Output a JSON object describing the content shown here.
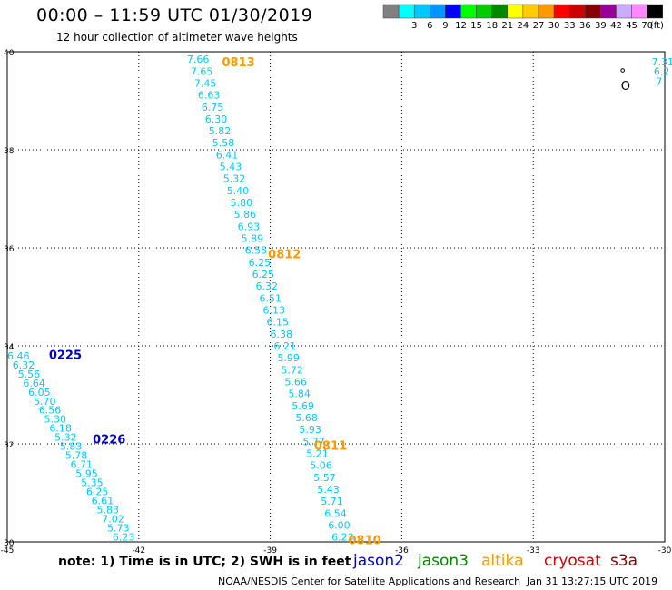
{
  "header": {
    "title": "00:00 – 11:59 UTC 01/30/2019",
    "subtitle": "12 hour collection of altimeter wave heights"
  },
  "colorbar": {
    "unit": "(ft)",
    "bins": [
      {
        "label": "",
        "color": "#808080"
      },
      {
        "label": "3",
        "color": "#00ffff"
      },
      {
        "label": "6",
        "color": "#00c8ff"
      },
      {
        "label": "9",
        "color": "#0096ff"
      },
      {
        "label": "12",
        "color": "#0000ff"
      },
      {
        "label": "15",
        "color": "#00ff00"
      },
      {
        "label": "18",
        "color": "#00cc00"
      },
      {
        "label": "21",
        "color": "#008800"
      },
      {
        "label": "24",
        "color": "#ffff00"
      },
      {
        "label": "27",
        "color": "#ffcc00"
      },
      {
        "label": "30",
        "color": "#ff9900"
      },
      {
        "label": "33",
        "color": "#ff0000"
      },
      {
        "label": "36",
        "color": "#cc0000"
      },
      {
        "label": "39",
        "color": "#880000"
      },
      {
        "label": "42",
        "color": "#990099"
      },
      {
        "label": "45",
        "color": "#ccaaff"
      },
      {
        "label": "70",
        "color": "#ff88ff"
      },
      {
        "label": "",
        "color": "#000000"
      }
    ]
  },
  "footer": {
    "note": "note: 1) Time is in UTC; 2) SWH is in feet",
    "satellites": [
      {
        "name": "jason2",
        "color": "#0000cc"
      },
      {
        "name": "jason3",
        "color": "#008800"
      },
      {
        "name": "altika",
        "color": "#ff9900"
      },
      {
        "name": "cryosat",
        "color": "#cc0000"
      },
      {
        "name": "s3a",
        "color": "#880000"
      }
    ],
    "credit": "NOAA/NESDIS Center for Satellite Applications and Research",
    "timestamp": "Jan 31 13:27:15 UTC 2019"
  },
  "chart_data": {
    "type": "scatter",
    "xlim": [
      -45,
      -30
    ],
    "ylim": [
      30,
      40
    ],
    "x_ticks": [
      -45,
      -42,
      -39,
      -36,
      -33,
      -30
    ],
    "x_tick_labels": [
      "-45",
      "-42",
      "-39",
      "-36",
      "-33",
      "-30"
    ],
    "y_ticks": [
      30,
      32,
      34,
      36,
      38,
      40
    ],
    "y_tick_labels": [
      "30",
      "32",
      "34",
      "36",
      "38",
      "40"
    ],
    "grid": true,
    "value_color": "#00c8ff",
    "tracks": [
      {
        "satellite": "altika",
        "start": [
          -40.9,
          39.85
        ],
        "end": [
          -37.6,
          30.1
        ],
        "values": [
          "7.66",
          "7.65",
          "7.45",
          "6.63",
          "6.75",
          "6.30",
          "5.82",
          "5.58",
          "6.41",
          "5.43",
          "5.32",
          "5.40",
          "5.80",
          "5.86",
          "6.93",
          "5.89",
          "6.55",
          "6.25",
          "6.25",
          "6.32",
          "6.51",
          "6.13",
          "6.15",
          "6.38",
          "6.21",
          "5.99",
          "5.72",
          "5.66",
          "5.84",
          "5.69",
          "5.68",
          "5.93",
          "5.77",
          "5.21",
          "5.06",
          "5.57",
          "5.43",
          "5.71",
          "6.54",
          "6.00",
          "6.23"
        ],
        "time_labels": [
          {
            "text": "0813",
            "lon": -40.1,
            "lat": 39.8,
            "color": "#ff9900"
          },
          {
            "text": "0812",
            "lon": -39.05,
            "lat": 35.88,
            "color": "#ff9900"
          },
          {
            "text": "0811",
            "lon": -38.0,
            "lat": 31.97,
            "color": "#ff9900"
          },
          {
            "text": "0810",
            "lon": -37.22,
            "lat": 30.05,
            "color": "#ff9900"
          }
        ]
      },
      {
        "satellite": "jason2",
        "start": [
          -45.0,
          33.8
        ],
        "end": [
          -42.6,
          30.1
        ],
        "values": [
          "6.46",
          "6.32",
          "5.56",
          "6.64",
          "6.05",
          "5.70",
          "6.56",
          "5.30",
          "6.18",
          "5.32",
          "5.83",
          "5.78",
          "6.71",
          "5.95",
          "5.35",
          "6.25",
          "6.61",
          "5.83",
          "7.02",
          "5.73",
          "6.23"
        ],
        "time_labels": [
          {
            "text": "0225",
            "lon": -44.05,
            "lat": 33.82,
            "color": "#0000cc"
          },
          {
            "text": "0226",
            "lon": -43.05,
            "lat": 32.1,
            "color": "#0000cc"
          }
        ]
      },
      {
        "satellite": "altika",
        "start": [
          -30.3,
          39.8
        ],
        "end": [
          -30.2,
          39.4
        ],
        "values": [
          "7.31",
          "6.2",
          "7"
        ],
        "time_labels": []
      }
    ],
    "annotations": [
      {
        "text": "O",
        "lon": -31.0,
        "lat": 39.3
      }
    ]
  }
}
